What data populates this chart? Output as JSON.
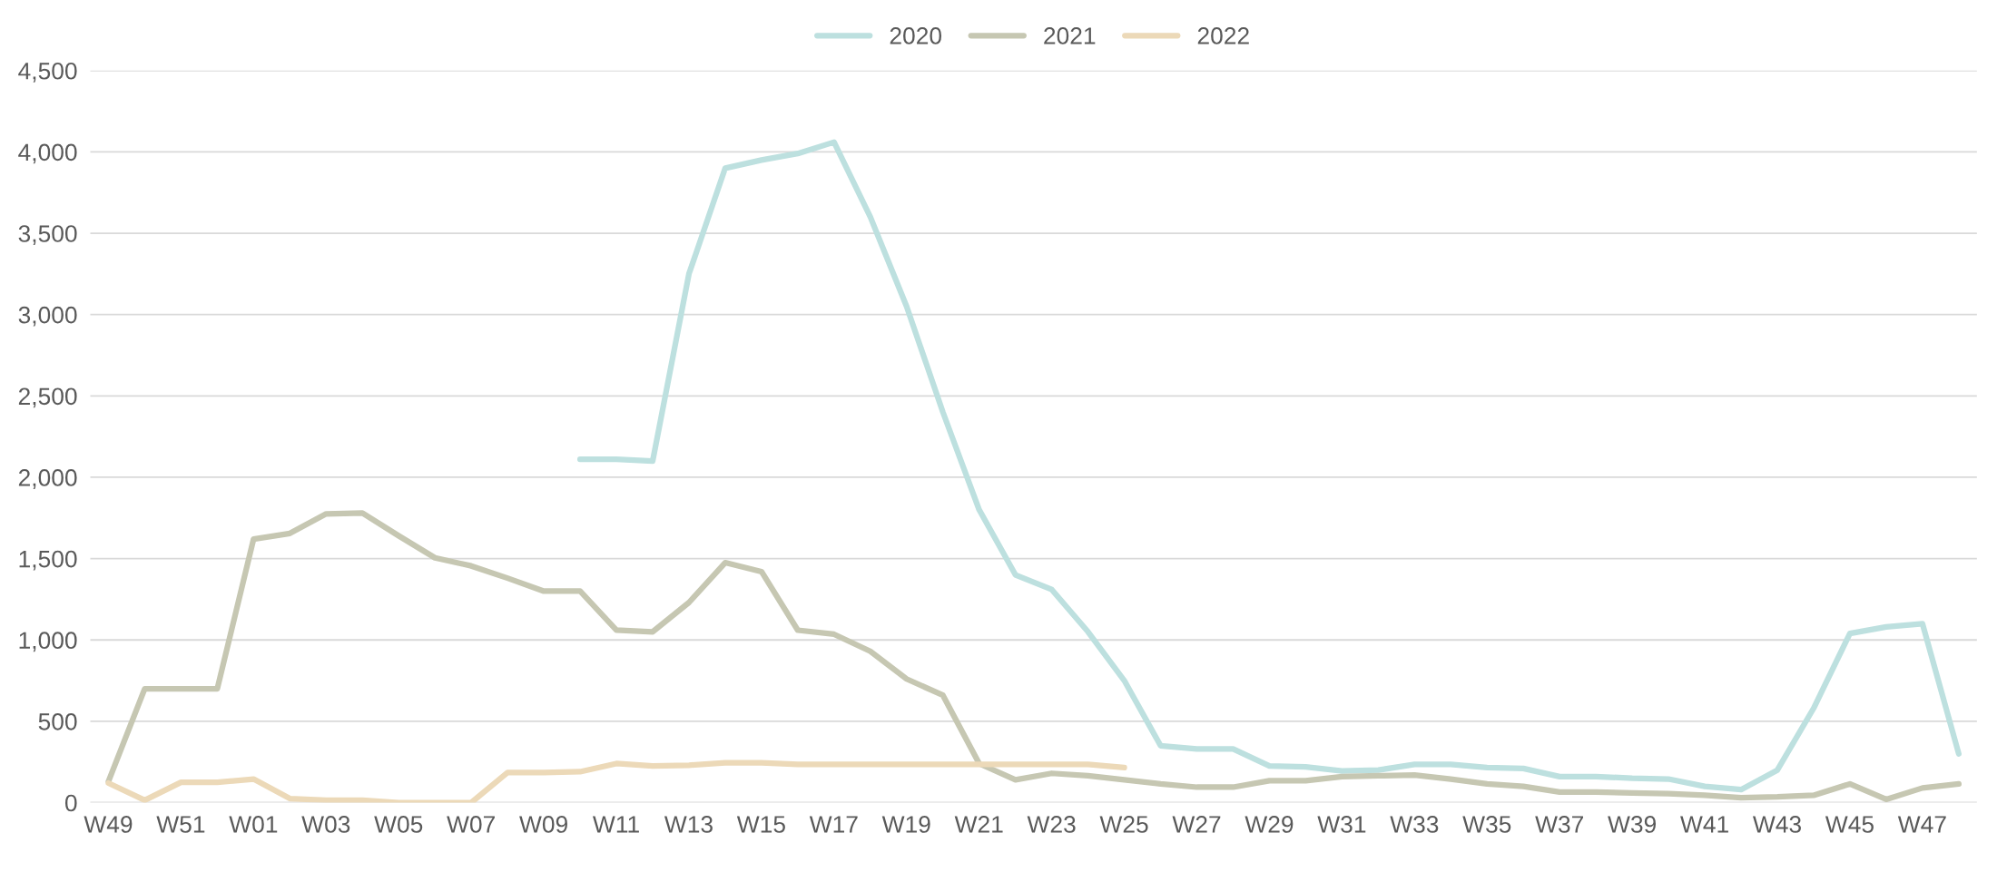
{
  "chart_data": {
    "type": "line",
    "categories": [
      "W49",
      null,
      "W51",
      null,
      "W01",
      null,
      "W03",
      null,
      "W05",
      null,
      "W07",
      null,
      "W09",
      null,
      "W11",
      null,
      "W13",
      null,
      "W15",
      null,
      "W17",
      null,
      "W19",
      null,
      "W21",
      null,
      "W23",
      null,
      "W25",
      null,
      "W27",
      null,
      "W29",
      null,
      "W31",
      null,
      "W33",
      null,
      "W35",
      null,
      "W37",
      null,
      "W39",
      null,
      "W41",
      null,
      "W43",
      null,
      "W45",
      null,
      "W47",
      null
    ],
    "series": [
      {
        "name": "2020",
        "color": "#bde0df",
        "values": [
          null,
          null,
          null,
          null,
          null,
          null,
          null,
          null,
          null,
          null,
          null,
          null,
          null,
          2110,
          2110,
          2100,
          3250,
          3900,
          3950,
          3990,
          4060,
          3600,
          3050,
          2400,
          1800,
          1400,
          1310,
          1050,
          750,
          350,
          330,
          330,
          225,
          220,
          195,
          200,
          235,
          235,
          215,
          210,
          160,
          160,
          150,
          145,
          100,
          80,
          200,
          580,
          1040,
          1080,
          1100,
          300
        ]
      },
      {
        "name": "2021",
        "color": "#c6c7b2",
        "values": [
          130,
          700,
          700,
          700,
          1620,
          1655,
          1775,
          1780,
          1640,
          1505,
          1455,
          1380,
          1300,
          1300,
          1060,
          1050,
          1230,
          1475,
          1420,
          1060,
          1035,
          930,
          760,
          660,
          240,
          140,
          180,
          165,
          140,
          115,
          95,
          95,
          135,
          135,
          160,
          165,
          170,
          145,
          115,
          100,
          65,
          65,
          60,
          55,
          45,
          30,
          35,
          45,
          115,
          20,
          90,
          115
        ]
      },
      {
        "name": "2022",
        "color": "#ecd9b8",
        "values": [
          120,
          15,
          125,
          125,
          145,
          25,
          15,
          15,
          0,
          0,
          0,
          185,
          185,
          190,
          240,
          225,
          230,
          245,
          245,
          235,
          235,
          235,
          235,
          235,
          235,
          235,
          235,
          235,
          215,
          null,
          null,
          null,
          null,
          null,
          null,
          null,
          null,
          null,
          null,
          null,
          null,
          null,
          null,
          null,
          null,
          null,
          null,
          null,
          null,
          null,
          null,
          null
        ]
      }
    ],
    "ylim": [
      0,
      4500
    ],
    "yticks": [
      {
        "value": 0,
        "label": "0"
      },
      {
        "value": 500,
        "label": "500"
      },
      {
        "value": 1000,
        "label": "1,000"
      },
      {
        "value": 1500,
        "label": "1,500"
      },
      {
        "value": 2000,
        "label": "2,000"
      },
      {
        "value": 2500,
        "label": "2,500"
      },
      {
        "value": 3000,
        "label": "3,000"
      },
      {
        "value": 3500,
        "label": "3,500"
      },
      {
        "value": 4000,
        "label": "4,000"
      },
      {
        "value": 4500,
        "label": "4,500"
      }
    ],
    "grid": "y",
    "legend": "top",
    "line_style": "solid",
    "marker": "none"
  }
}
